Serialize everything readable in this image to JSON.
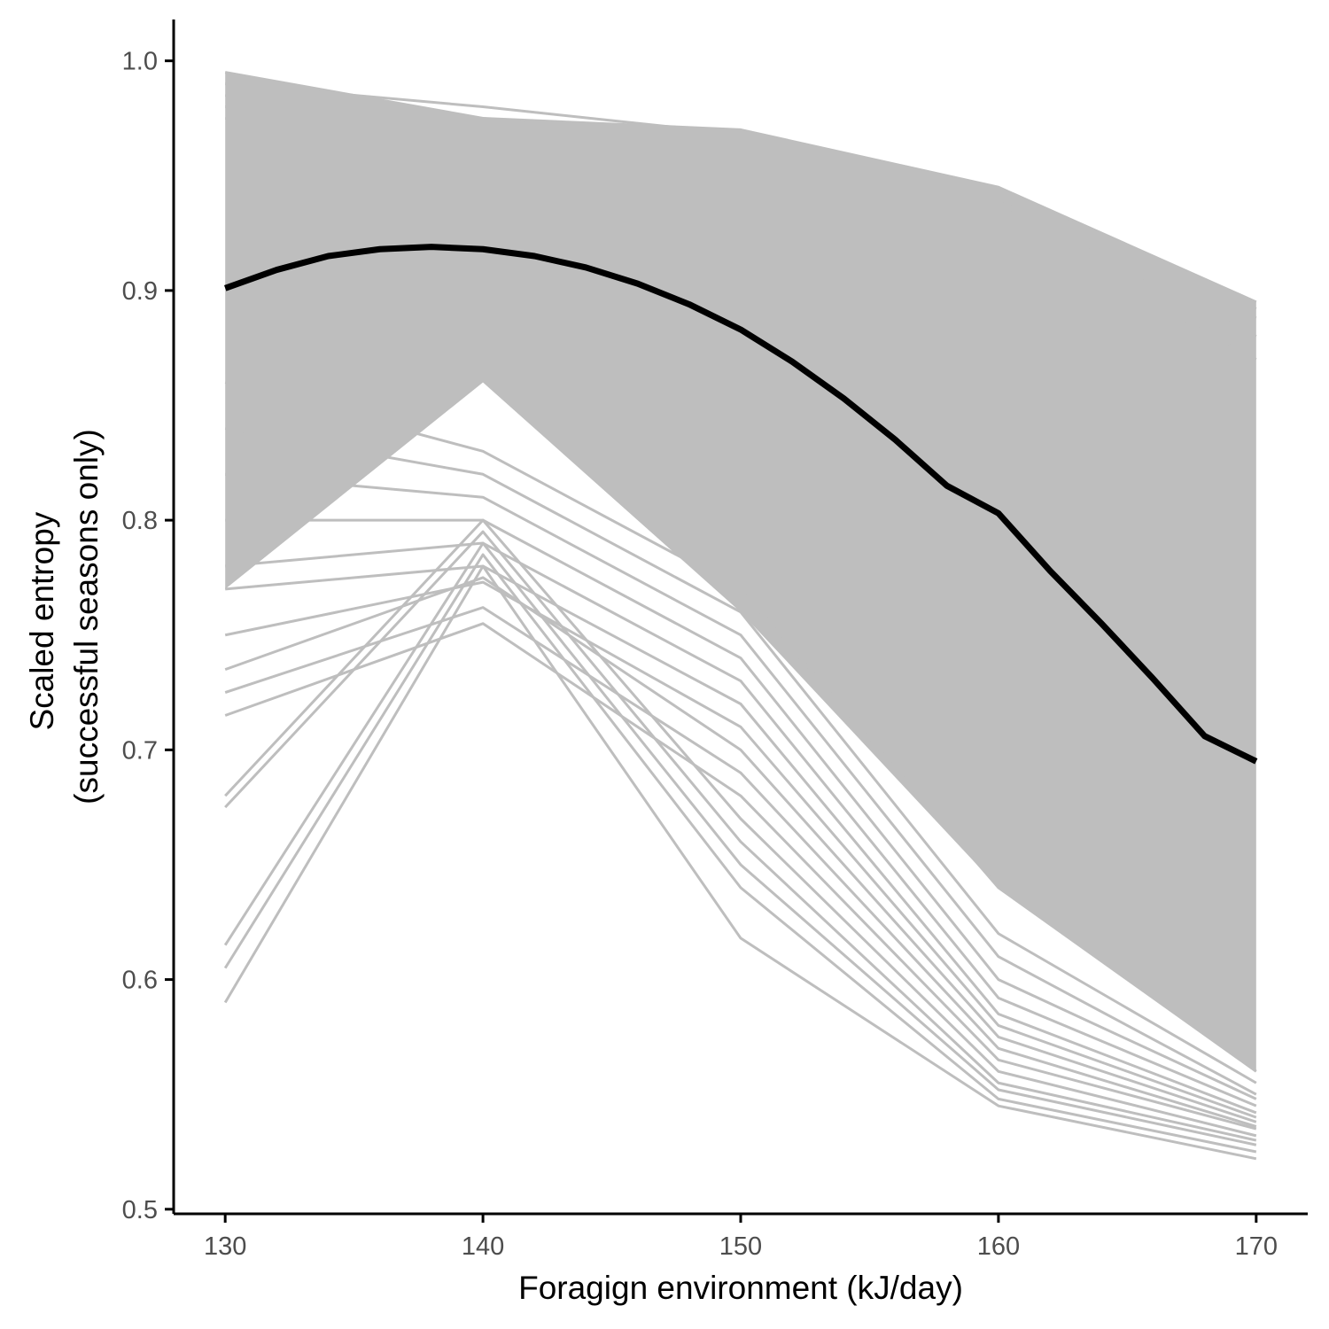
{
  "chart_data": {
    "type": "line",
    "title": "",
    "xlabel": "Foragign environment (kJ/day)",
    "ylabel_lines": [
      "Scaled entropy",
      "(successful seasons only)"
    ],
    "xlim": [
      128,
      172
    ],
    "ylim": [
      0.498,
      1.018
    ],
    "x_ticks": [
      {
        "value": 130,
        "label": "130"
      },
      {
        "value": 140,
        "label": "140"
      },
      {
        "value": 150,
        "label": "150"
      },
      {
        "value": 160,
        "label": "160"
      },
      {
        "value": 170,
        "label": "170"
      }
    ],
    "y_ticks": [
      {
        "value": 0.5,
        "label": "0.5"
      },
      {
        "value": 0.6,
        "label": "0.6"
      },
      {
        "value": 0.7,
        "label": "0.7"
      },
      {
        "value": 0.8,
        "label": "0.8"
      },
      {
        "value": 0.9,
        "label": "0.9"
      },
      {
        "value": 1.0,
        "label": "1.0"
      }
    ],
    "x": [
      130,
      140,
      150,
      160,
      170
    ],
    "grid": false,
    "legend": "none",
    "colors": {
      "individual": "#bebebe",
      "mean": "#000000",
      "axis": "#000000"
    },
    "individual_series_upper": [
      [
        0.995,
        0.975,
        0.97,
        0.945,
        0.895
      ],
      [
        0.99,
        0.98,
        0.968,
        0.944,
        0.892
      ],
      [
        0.985,
        0.97,
        0.966,
        0.94,
        0.888
      ],
      [
        0.98,
        0.975,
        0.962,
        0.938,
        0.88
      ],
      [
        0.975,
        0.965,
        0.958,
        0.93,
        0.87
      ]
    ],
    "individual_series_lower": [
      [
        0.59,
        0.78,
        0.618,
        0.545,
        0.522
      ],
      [
        0.605,
        0.785,
        0.64,
        0.548,
        0.525
      ],
      [
        0.615,
        0.79,
        0.65,
        0.552,
        0.528
      ],
      [
        0.675,
        0.795,
        0.66,
        0.555,
        0.53
      ],
      [
        0.68,
        0.8,
        0.67,
        0.56,
        0.532
      ],
      [
        0.715,
        0.755,
        0.68,
        0.565,
        0.535
      ],
      [
        0.725,
        0.762,
        0.69,
        0.57,
        0.536
      ],
      [
        0.735,
        0.775,
        0.7,
        0.575,
        0.538
      ],
      [
        0.75,
        0.773,
        0.71,
        0.58,
        0.54
      ],
      [
        0.77,
        0.78,
        0.72,
        0.585,
        0.542
      ],
      [
        0.78,
        0.79,
        0.73,
        0.592,
        0.545
      ],
      [
        0.8,
        0.8,
        0.74,
        0.6,
        0.548
      ],
      [
        0.82,
        0.81,
        0.75,
        0.61,
        0.55
      ],
      [
        0.84,
        0.82,
        0.76,
        0.62,
        0.555
      ],
      [
        0.86,
        0.83,
        0.77,
        0.64,
        0.56
      ]
    ],
    "mean_curve": {
      "x": [
        130,
        132,
        134,
        136,
        138,
        140,
        142,
        144,
        146,
        148,
        150,
        152,
        154,
        156,
        158,
        160,
        162,
        164,
        166,
        168,
        170
      ],
      "y": [
        0.901,
        0.909,
        0.915,
        0.918,
        0.919,
        0.918,
        0.915,
        0.91,
        0.903,
        0.894,
        0.883,
        0.869,
        0.853,
        0.835,
        0.815,
        0.803,
        0.778,
        0.755,
        0.731,
        0.706,
        0.695
      ]
    }
  }
}
